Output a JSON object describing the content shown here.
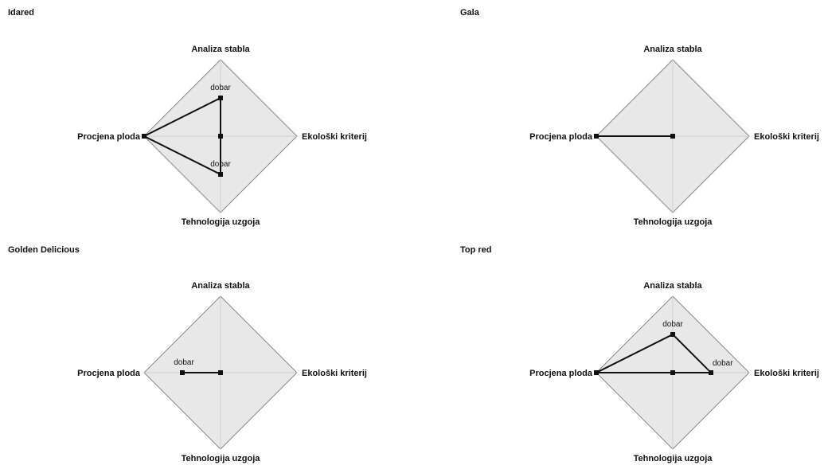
{
  "chart_data": [
    {
      "type": "radar",
      "title": "Idared",
      "axes": [
        "Analiza stabla",
        "Ekološki kriterij",
        "Tehnologija uzgoja",
        "Procjena ploda"
      ],
      "rmax": 1,
      "values": [
        0.5,
        0,
        0.5,
        1
      ],
      "point_labels": [
        "dobar",
        "",
        "dobar",
        ""
      ],
      "grid": true
    },
    {
      "type": "radar",
      "title": "Gala",
      "axes": [
        "Analiza stabla",
        "Ekološki kriterij",
        "Tehnologija uzgoja",
        "Procjena ploda"
      ],
      "rmax": 1,
      "values": [
        0,
        0,
        0,
        1
      ],
      "point_labels": [
        "",
        "",
        "",
        ""
      ],
      "grid": true
    },
    {
      "type": "radar",
      "title": "Golden Delicious",
      "axes": [
        "Analiza stabla",
        "Ekološki kriterij",
        "Tehnologija uzgoja",
        "Procjena ploda"
      ],
      "rmax": 1,
      "values": [
        0,
        0,
        0,
        0.5
      ],
      "point_labels": [
        "",
        "",
        "",
        "dobar"
      ],
      "grid": true
    },
    {
      "type": "radar",
      "title": "Top red",
      "axes": [
        "Analiza stabla",
        "Ekološki kriterij",
        "Tehnologija uzgoja",
        "Procjena ploda"
      ],
      "rmax": 1,
      "values": [
        0.5,
        0.5,
        0,
        1
      ],
      "point_labels": [
        "dobar",
        "dobar",
        "",
        ""
      ],
      "grid": true
    }
  ],
  "colors": {
    "background": "#e8e8e8",
    "frame": "#888888",
    "grid": "#cfcfcf",
    "series": "#111111"
  }
}
